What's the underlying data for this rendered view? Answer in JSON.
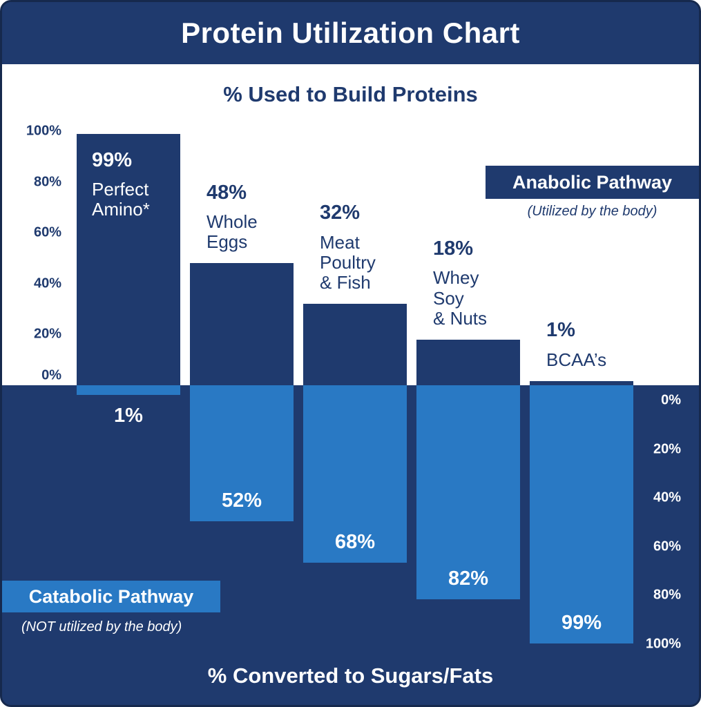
{
  "colors": {
    "navy": "#1f3a6e",
    "blue": "#2979c4",
    "white": "#ffffff"
  },
  "chart_data": {
    "type": "bar",
    "title": "Protein Utilization Chart",
    "top_section_title": "% Used to Build Proteins",
    "bottom_section_title": "% Converted to Sugars/Fats",
    "categories": [
      "Perfect Amino*",
      "Whole Eggs",
      "Meat Poultry & Fish",
      "Whey Soy & Nuts",
      "BCAA’s"
    ],
    "category_lines": [
      [
        "Perfect",
        "Amino*"
      ],
      [
        "Whole",
        "Eggs"
      ],
      [
        "Meat",
        "Poultry",
        "& Fish"
      ],
      [
        "Whey",
        "Soy",
        "& Nuts"
      ],
      [
        "BCAA’s"
      ]
    ],
    "series": [
      {
        "name": "Anabolic Pathway",
        "values": [
          99,
          48,
          32,
          18,
          1
        ],
        "labels": [
          "99%",
          "48%",
          "32%",
          "18%",
          "1%"
        ]
      },
      {
        "name": "Catabolic Pathway",
        "values": [
          1,
          52,
          68,
          82,
          99
        ],
        "labels": [
          "1%",
          "52%",
          "68%",
          "82%",
          "99%"
        ]
      }
    ],
    "left_axis_ticks": [
      {
        "value": 100,
        "label": "100%"
      },
      {
        "value": 80,
        "label": "80%"
      },
      {
        "value": 60,
        "label": "60%"
      },
      {
        "value": 40,
        "label": "40%"
      },
      {
        "value": 20,
        "label": "20%"
      },
      {
        "value": 0,
        "label": "0%"
      }
    ],
    "right_axis_ticks": [
      {
        "value": 0,
        "label": "0%"
      },
      {
        "value": 20,
        "label": "20%"
      },
      {
        "value": 40,
        "label": "40%"
      },
      {
        "value": 60,
        "label": "60%"
      },
      {
        "value": 80,
        "label": "80%"
      },
      {
        "value": 100,
        "label": "100%"
      }
    ],
    "legend": {
      "anabolic": {
        "label": "Anabolic Pathway",
        "sub": "(Utilized by the body)"
      },
      "catabolic": {
        "label": "Catabolic Pathway",
        "sub": "(NOT utilized by the body)"
      }
    },
    "ylim_up": [
      0,
      100
    ],
    "ylim_down": [
      0,
      100
    ],
    "grid": false
  }
}
